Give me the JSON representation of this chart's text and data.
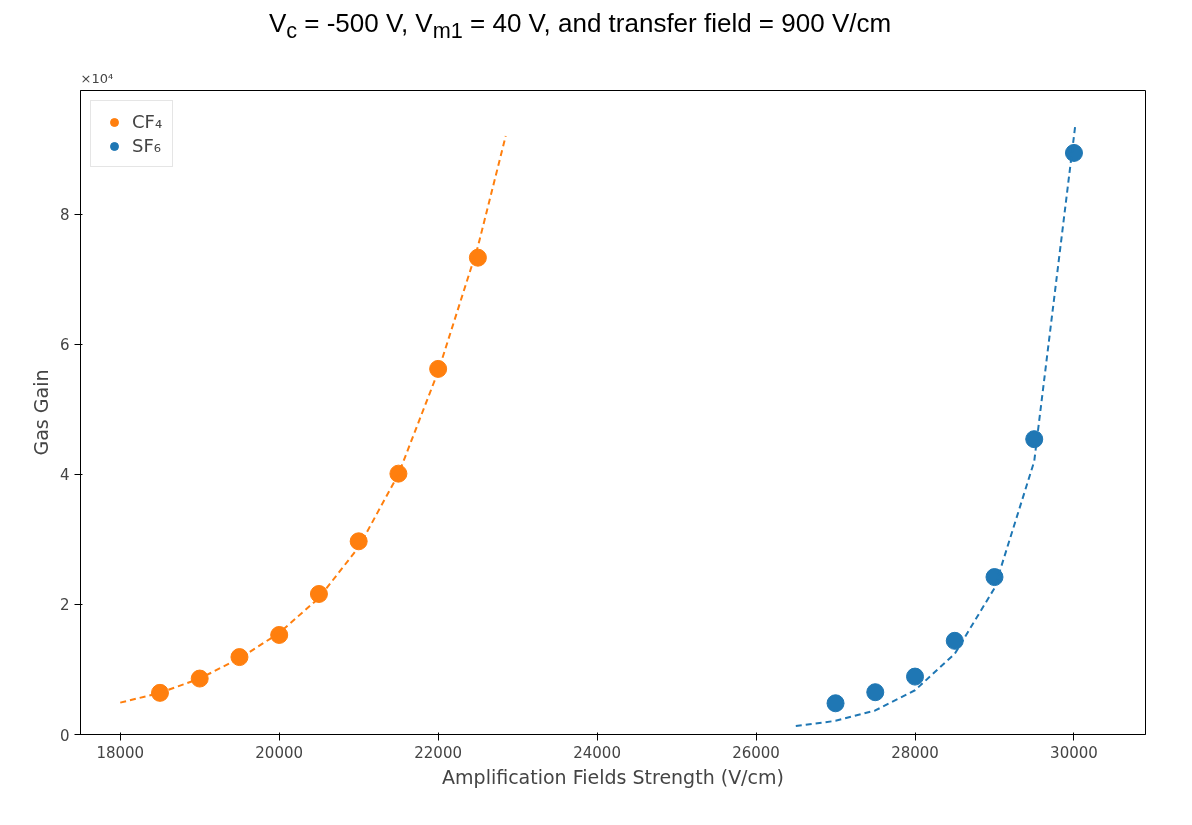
{
  "chart_data": {
    "type": "scatter",
    "title": "V$_{c}$ =  -500 V, V$_{m1}$ =  40 V, and transfer field = 900 V/cm",
    "xlabel": "Amplification Fields Strength (V/cm)",
    "ylabel": "Gas Gain",
    "annotations": [
      "×10⁴"
    ],
    "xlim": [
      17500,
      30900
    ],
    "ylim": [
      0,
      9.9
    ],
    "xticks": [
      18000,
      20000,
      22000,
      24000,
      26000,
      28000,
      30000
    ],
    "yticks": [
      0,
      2,
      4,
      6,
      8
    ],
    "legend": "top left",
    "marker": "circle",
    "grid": false,
    "series": [
      {
        "name": "CF₄",
        "color": "#ff7f0e",
        "x": [
          18500,
          19000,
          19500,
          20000,
          20500,
          21000,
          21500,
          22000,
          22500
        ],
        "values": [
          0.64,
          0.86,
          1.19,
          1.53,
          2.16,
          2.97,
          4.01,
          5.62,
          7.33
        ]
      },
      {
        "name": "SF₆",
        "color": "#1f77b4",
        "x": [
          27000,
          27500,
          28000,
          28500,
          29000,
          29500,
          30000
        ],
        "values": [
          0.48,
          0.65,
          0.89,
          1.44,
          2.42,
          4.54,
          8.94
        ]
      },
      {
        "type": "line",
        "line_style": "dashed",
        "marker": "none",
        "color": "#ff7f0e",
        "x": [
          18000,
          18500,
          19000,
          19500,
          20000,
          20500,
          21000,
          21500,
          22000,
          22500,
          22850
        ],
        "values": [
          0.49,
          0.64,
          0.86,
          1.17,
          1.56,
          2.1,
          2.88,
          4.0,
          5.58,
          7.5,
          9.2
        ]
      },
      {
        "type": "line",
        "line_style": "dashed",
        "marker": "none",
        "color": "#1f77b4",
        "x": [
          26500,
          27000,
          27500,
          28000,
          28500,
          29000,
          29500,
          30020
        ],
        "values": [
          0.13,
          0.21,
          0.37,
          0.68,
          1.24,
          2.25,
          4.2,
          9.4
        ]
      }
    ]
  }
}
